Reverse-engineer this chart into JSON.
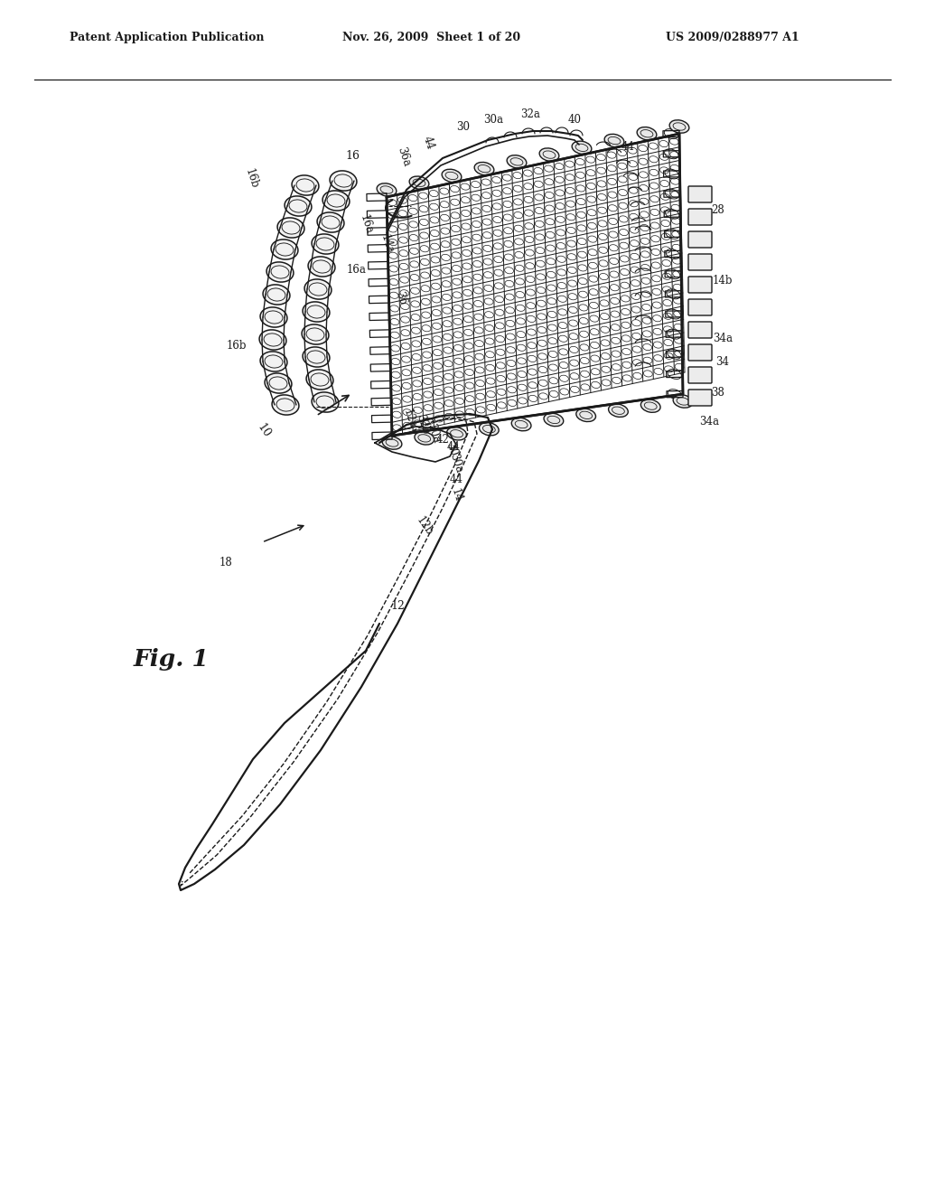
{
  "bg_color": "#ffffff",
  "line_color": "#1a1a1a",
  "header_left": "Patent Application Publication",
  "header_center": "Nov. 26, 2009  Sheet 1 of 20",
  "header_right": "US 2009/0288977 A1",
  "fig_label": "Fig. 1"
}
